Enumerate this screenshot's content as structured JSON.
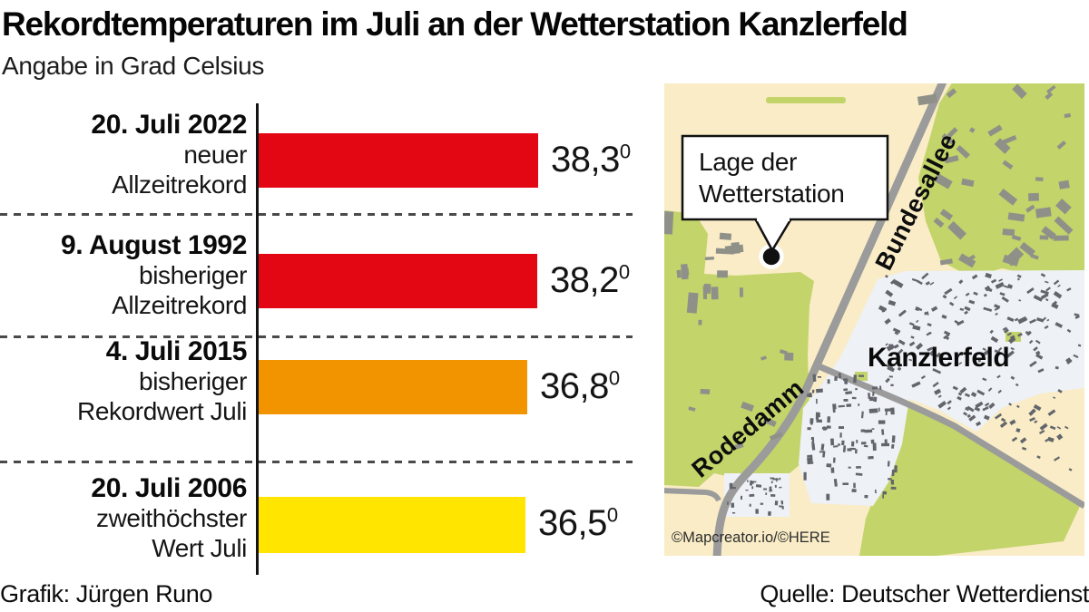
{
  "title": "Rekordtemperaturen im Juli an der Wetterstation Kanzlerfeld",
  "subtitle": "Angabe in Grad Celsius",
  "footer": {
    "credit": "Grafik: Jürgen Runo",
    "source": "Quelle: Deutscher Wetterdienst"
  },
  "chart_data": {
    "type": "bar",
    "orientation": "horizontal",
    "title": "Rekordtemperaturen im Juli an der Wetterstation Kanzlerfeld",
    "unit_note": "Angabe in Grad Celsius",
    "xlim": [
      0,
      38.3
    ],
    "degree_suffix": "0",
    "categories": [
      "20. Juli 2022",
      "9. August 1992",
      "4. Juli 2015",
      "20. Juli 2006"
    ],
    "bars": [
      {
        "date": "20. Juli 2022",
        "desc_lines": [
          "neuer",
          "Allzeitrekord"
        ],
        "value": 38.3,
        "value_label": "38,3",
        "color": "#e30613"
      },
      {
        "date": "9. August 1992",
        "desc_lines": [
          "bisheriger",
          "Allzeitrekord"
        ],
        "value": 38.2,
        "value_label": "38,2",
        "color": "#e30613"
      },
      {
        "date": "4. Juli 2015",
        "desc_lines": [
          "bisheriger",
          "Rekordwert Juli"
        ],
        "value": 36.8,
        "value_label": "36,8",
        "color": "#f29400"
      },
      {
        "date": "20. Juli 2006",
        "desc_lines": [
          "zweithöchster",
          "Wert Juli"
        ],
        "value": 36.5,
        "value_label": "36,5",
        "color": "#ffe500"
      }
    ]
  },
  "map": {
    "callout": {
      "line1": "Lage der",
      "line2": "Wetterstation"
    },
    "labels": {
      "road_main": "Bundesallee",
      "road_secondary": "Rodedamm",
      "district": "Kanzlerfeld"
    },
    "attribution": "©Mapcreator.io/©HERE",
    "colors": {
      "land": "#f9ecc6",
      "green": "#c3d46a",
      "residential": "#eef1f5",
      "road": "#9b9b9b",
      "building": "#8f9189",
      "building_small": "#62666c",
      "marker": "#101010"
    }
  }
}
